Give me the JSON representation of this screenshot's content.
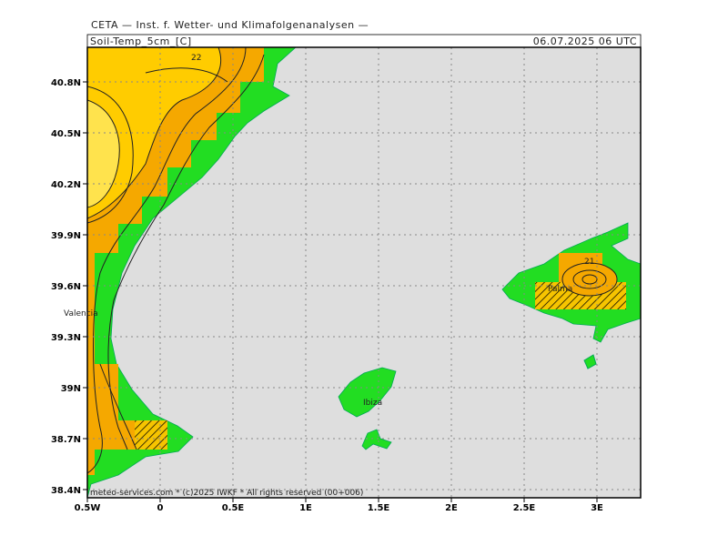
{
  "header": {
    "title": "CETA — Inst. f. Wetter- und Klimafolgenanalysen —",
    "field": "Soil-Temp_5cm_[C]",
    "datetime": "06.07.2025 06 UTC"
  },
  "map": {
    "lat_ticks": [
      "40.8N",
      "40.5N",
      "40.2N",
      "39.9N",
      "39.6N",
      "39.3N",
      "39N",
      "38.7N",
      "38.4N"
    ],
    "lon_ticks": [
      "0.5W",
      "0",
      "0.5E",
      "1E",
      "1.5E",
      "2E",
      "2.5E",
      "3E"
    ],
    "labels": [
      "22",
      "21",
      "Valencia",
      "Ibiza",
      "Palma"
    ]
  },
  "footer": "meteo-services.com * (c)2025 IWKF * All rights reserved (00+006)"
}
